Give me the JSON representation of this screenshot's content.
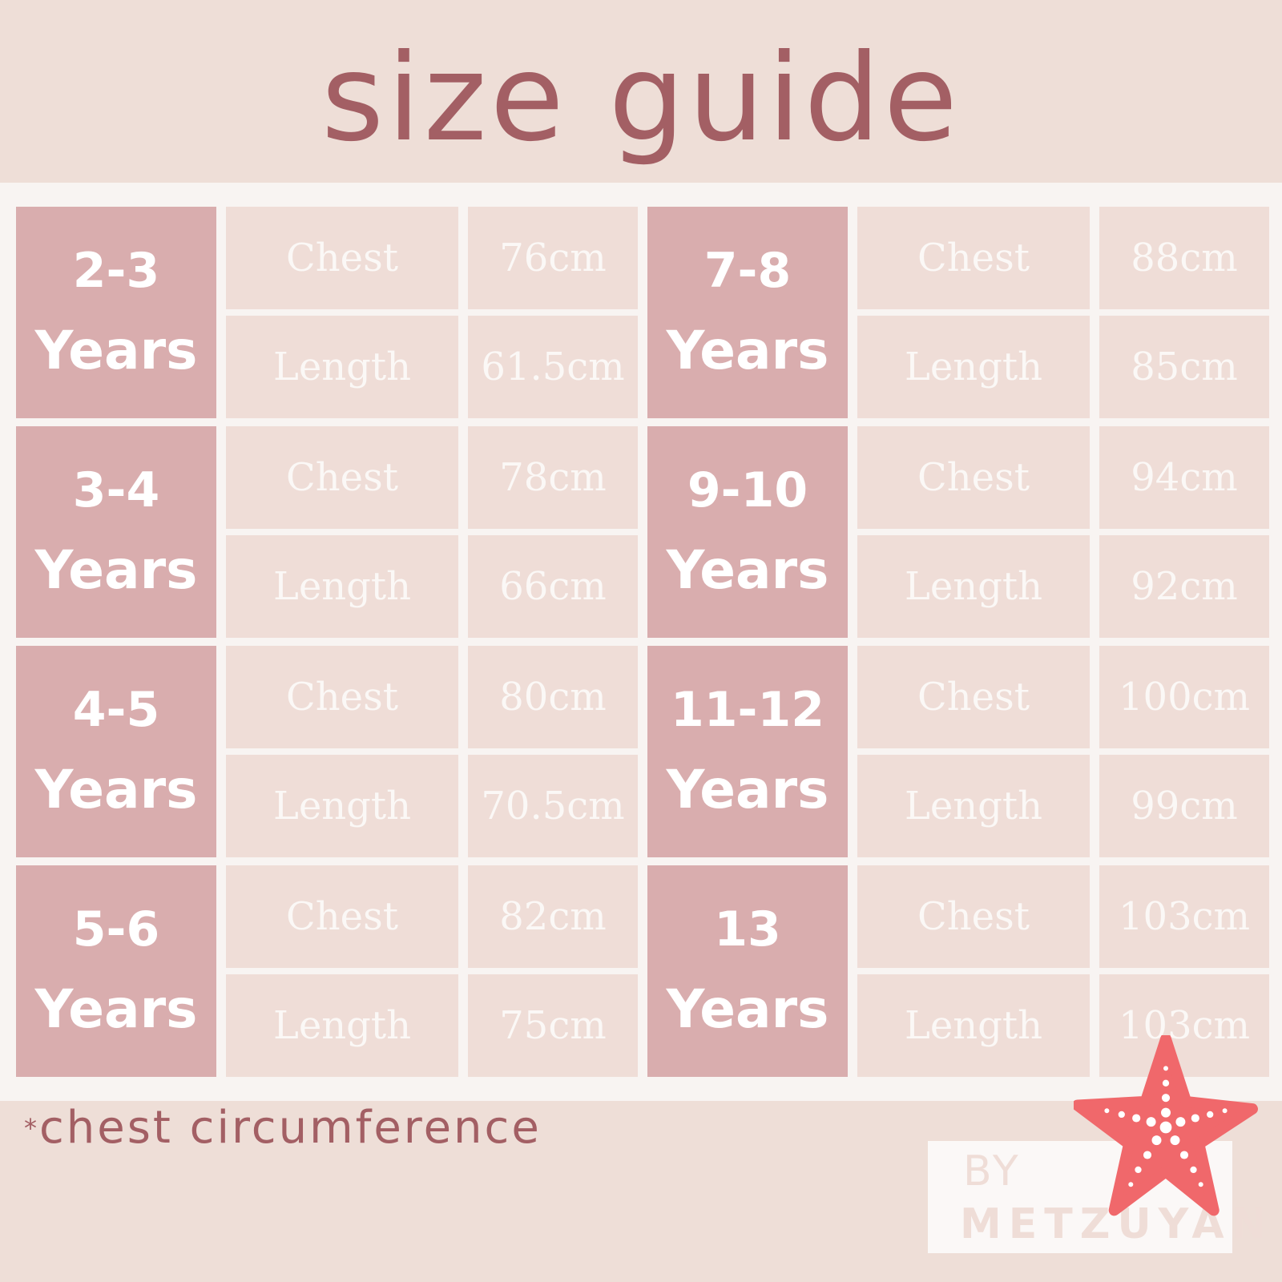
{
  "title": "size guide",
  "sizes": [
    {
      "range": "2-3",
      "unit": "Years",
      "chest_label": "Chest",
      "chest": "76cm",
      "length_label": "Length",
      "length": "61.5cm"
    },
    {
      "range": "3-4",
      "unit": "Years",
      "chest_label": "Chest",
      "chest": "78cm",
      "length_label": "Length",
      "length": "66cm"
    },
    {
      "range": "4-5",
      "unit": "Years",
      "chest_label": "Chest",
      "chest": "80cm",
      "length_label": "Length",
      "length": "70.5cm"
    },
    {
      "range": "5-6",
      "unit": "Years",
      "chest_label": "Chest",
      "chest": "82cm",
      "length_label": "Length",
      "length": "75cm"
    },
    {
      "range": "7-8",
      "unit": "Years",
      "chest_label": "Chest",
      "chest": "88cm",
      "length_label": "Length",
      "length": "85cm"
    },
    {
      "range": "9-10",
      "unit": "Years",
      "chest_label": "Chest",
      "chest": "94cm",
      "length_label": "Length",
      "length": "92cm"
    },
    {
      "range": "11-12",
      "unit": "Years",
      "chest_label": "Chest",
      "chest": "100cm",
      "length_label": "Length",
      "length": "99cm"
    },
    {
      "range": "13",
      "unit": "Years",
      "chest_label": "Chest",
      "chest": "103cm",
      "length_label": "Length",
      "length": "103cm"
    }
  ],
  "footnote": {
    "marker": "*",
    "text": "chest circumference"
  },
  "logo": {
    "by": "BY",
    "brand": "METZUYAN",
    "icon": "starfish-icon"
  },
  "colors": {
    "title": "#a35f64",
    "age_cell": "#d9adae",
    "data_cell": "#efddd7",
    "band": "#eeded7",
    "starfish": "#f0686b"
  }
}
